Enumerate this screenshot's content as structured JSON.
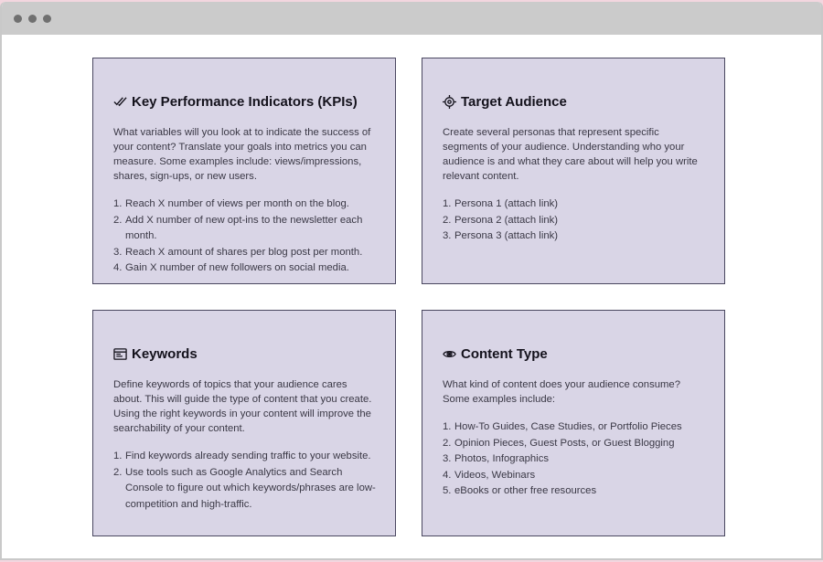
{
  "cards": [
    {
      "title": "Key Performance Indicators (KPIs)",
      "icon": "double-check-icon",
      "text": "What variables will you look at to indicate the success of your content? Translate your goals into metrics you can measure. Some examples include: views/impressions, shares, sign-ups, or new users.",
      "items": [
        "Reach X number of views per month on the blog.",
        "Add X number of new opt-ins to the newsletter each month.",
        "Reach X amount of shares per blog post per month.",
        "Gain X number of new followers on social media."
      ]
    },
    {
      "title": "Target Audience",
      "icon": "target-icon",
      "text": "Create several personas that represent specific segments of your audience. Understanding who your audience is and what they care about will help you write relevant content.",
      "items": [
        "Persona 1 (attach link)",
        "Persona 2 (attach link)",
        "Persona 3 (attach link)"
      ]
    },
    {
      "title": "Keywords",
      "icon": "browser-window-icon",
      "text": "Define keywords of topics that your audience cares about. This will guide the type of content that you create. Using the right keywords in your content will improve the searchability of your content.",
      "items": [
        "Find keywords already sending traffic to your website.",
        "Use tools such as Google Analytics and Search Console to figure out which keywords/phrases are low-competition and high-traffic."
      ]
    },
    {
      "title": "Content Type",
      "icon": "eye-icon",
      "text": "What kind of content does your audience consume? Some examples include:",
      "items": [
        "How-To Guides, Case Studies, or Portfolio Pieces",
        "Opinion Pieces, Guest Posts, or Guest Blogging",
        "Photos, Infographics",
        "Videos, Webinars",
        "eBooks or other free resources"
      ]
    }
  ]
}
